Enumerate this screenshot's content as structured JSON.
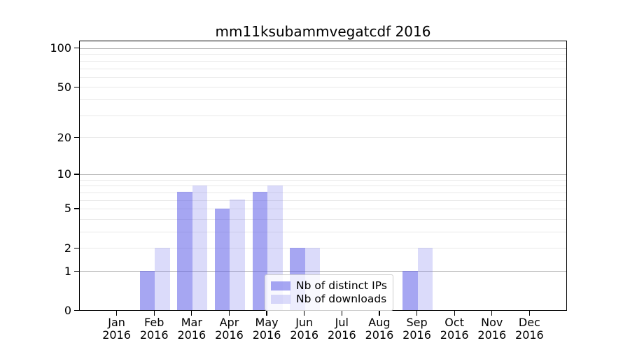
{
  "title": "mm11ksubammvegatcdf 2016",
  "chart_data": {
    "type": "bar",
    "title": "mm11ksubammvegatcdf 2016",
    "categories": [
      "Jan 2016",
      "Feb 2016",
      "Mar 2016",
      "Apr 2016",
      "May 2016",
      "Jun 2016",
      "Jul 2016",
      "Aug 2016",
      "Sep 2016",
      "Oct 2016",
      "Nov 2016",
      "Dec 2016"
    ],
    "months": [
      "Jan",
      "Feb",
      "Mar",
      "Apr",
      "May",
      "Jun",
      "Jul",
      "Aug",
      "Sep",
      "Oct",
      "Nov",
      "Dec"
    ],
    "year": "2016",
    "series": [
      {
        "name": "Nb of distinct IPs",
        "color": "rgba(93,93,231,0.55)",
        "values": [
          0,
          1,
          7,
          5,
          7,
          2,
          0,
          0,
          1,
          0,
          0,
          0
        ]
      },
      {
        "name": "Nb of downloads",
        "color": "rgba(123,123,235,0.27)",
        "values": [
          0,
          2,
          8,
          6,
          8,
          2,
          0,
          0,
          2,
          0,
          0,
          0
        ]
      }
    ],
    "xlabel": "",
    "ylabel": "",
    "y_scale": "log10(1+value)",
    "y_ticks": [
      0,
      1,
      2,
      5,
      10,
      20,
      50,
      100
    ],
    "y_tick_labels": [
      "0",
      "1",
      "2",
      "5",
      "10",
      "20",
      "50",
      "100"
    ],
    "ylim": [
      0,
      114
    ],
    "y_gridlines_major": [
      1,
      10,
      100
    ],
    "y_gridlines_minor": [
      2,
      3,
      4,
      5,
      6,
      7,
      8,
      9,
      20,
      30,
      40,
      50,
      60,
      70,
      80,
      90
    ],
    "grid": true,
    "legend_position": "lower center",
    "colors": {
      "bar_distinct_ips": "rgba(93,93,231,0.55)",
      "bar_downloads": "rgba(123,123,235,0.27)",
      "grid_major": "#b0b0b0",
      "grid_minor": "#e9e9e9",
      "spine": "#000000",
      "legend_border": "#cccccc"
    }
  }
}
